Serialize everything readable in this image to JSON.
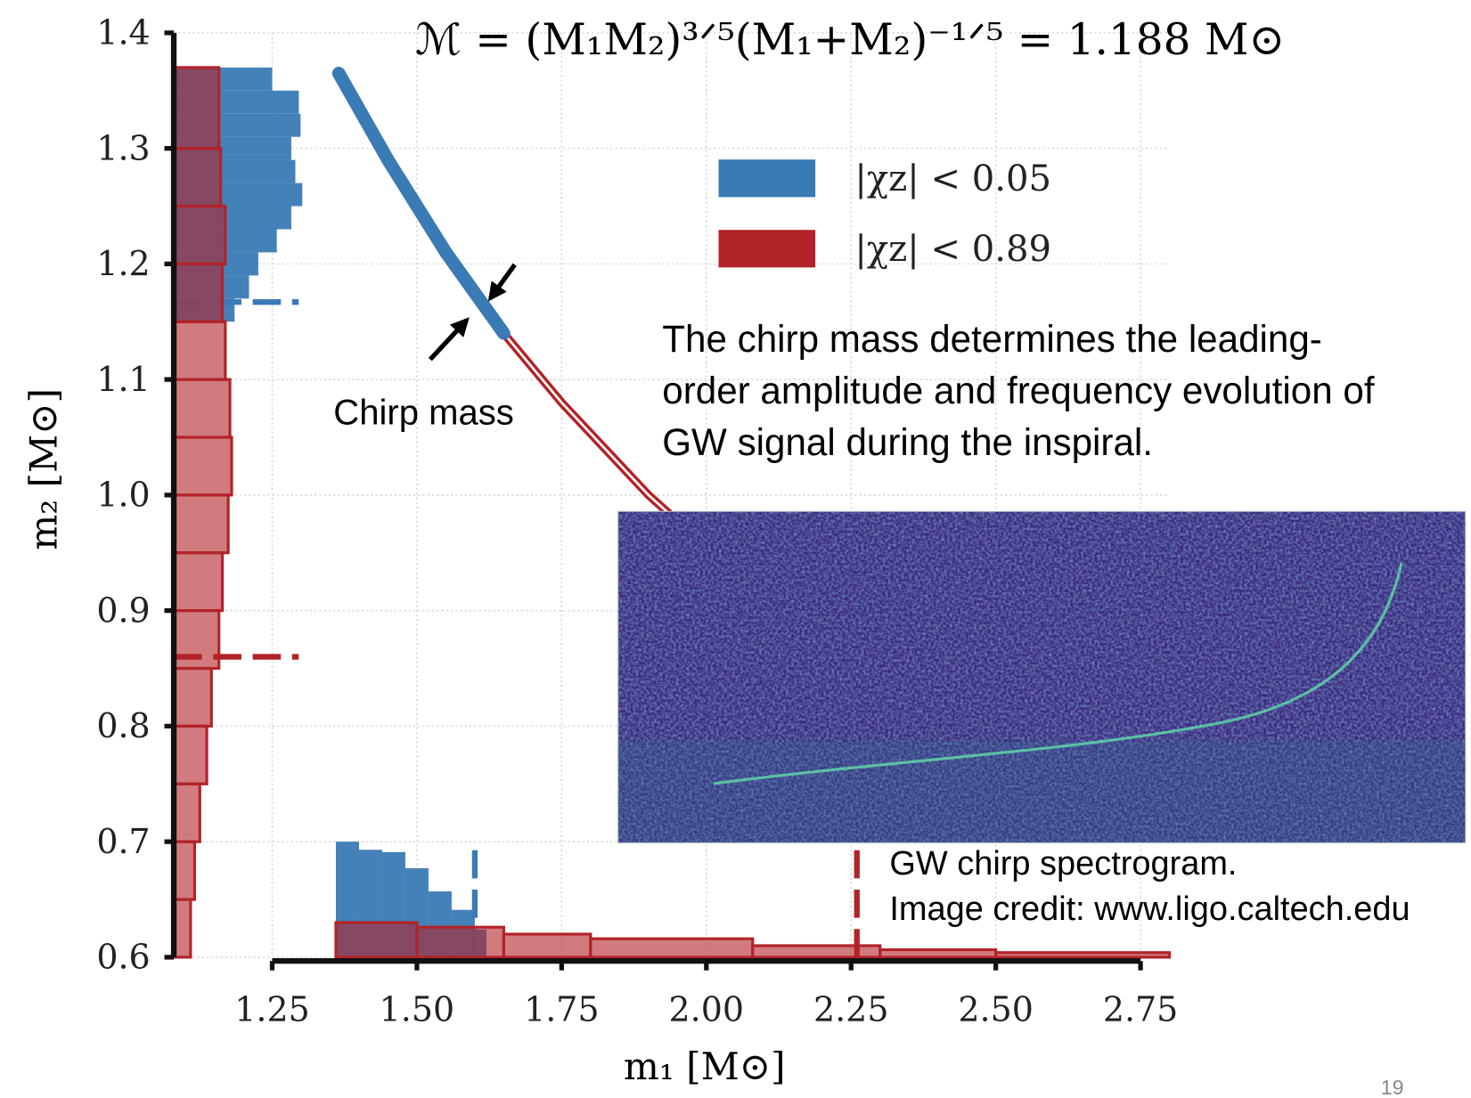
{
  "chart_data": {
    "type": "scatter",
    "title": "ℳ = (M₁M₂)³ᐟ⁵(M₁+M₂)⁻¹ᐟ⁵ = 1.188 M⊙",
    "x_label": "m₁ [M⊙]",
    "y_label": "m₂ [M⊙]",
    "xlim": [
      1.08,
      2.8
    ],
    "ylim": [
      0.6,
      1.4
    ],
    "xticks": [
      1.25,
      {
        "value": 1.5,
        "label": "1.50"
      },
      1.75,
      {
        "value": 2.0,
        "label": "2.00"
      },
      2.25,
      {
        "value": 2.5,
        "label": "2.50"
      },
      2.75
    ],
    "yticks": [
      0.6,
      0.7,
      0.8,
      0.9,
      {
        "value": 1.0,
        "label": "1.0"
      },
      1.1,
      1.2,
      1.3,
      1.4
    ],
    "grid": true,
    "legend": "upper right",
    "series": [
      {
        "name": "|χz| < 0.05",
        "color": "#3a7ab5",
        "x": [
          1.365,
          1.45,
          1.55,
          1.65
        ],
        "y": [
          1.365,
          1.29,
          1.21,
          1.14
        ],
        "hist_m2": {
          "bins": [
            1.15,
            1.17,
            1.19,
            1.21,
            1.23,
            1.25,
            1.27,
            1.29,
            1.31,
            1.33,
            1.35,
            1.37
          ],
          "values": [
            0.105,
            0.13,
            0.146,
            0.178,
            0.203,
            0.222,
            0.21,
            0.203,
            0.219,
            0.216,
            0.17
          ]
        },
        "hist_m1": {
          "bins": [
            1.36,
            1.4,
            1.44,
            1.48,
            1.52,
            1.56,
            1.6,
            1.62
          ],
          "values": [
            0.1,
            0.093,
            0.091,
            0.077,
            0.057,
            0.041,
            0.024
          ]
        },
        "median_m1": 1.6,
        "median_m2": 1.167
      },
      {
        "name": "|χz| < 0.89",
        "color": "#b22328",
        "x": [
          1.65,
          1.75,
          1.9,
          2.0,
          2.1,
          2.26
        ],
        "y": [
          1.14,
          1.08,
          1.0,
          0.955,
          0.91,
          0.85
        ],
        "hist_m2": {
          "bins": [
            0.6,
            0.65,
            0.7,
            0.75,
            0.8,
            0.85,
            0.9,
            0.95,
            1.0,
            1.05,
            1.1,
            1.15,
            1.2,
            1.25,
            1.3,
            1.37
          ],
          "values": [
            0.029,
            0.036,
            0.045,
            0.057,
            0.065,
            0.078,
            0.084,
            0.094,
            0.1,
            0.097,
            0.089,
            0.084,
            0.089,
            0.081,
            0.078
          ]
        },
        "hist_m1": {
          "bins": [
            1.36,
            1.5,
            1.65,
            1.8,
            2.08,
            2.3,
            2.5,
            2.8
          ],
          "values": [
            0.03,
            0.026,
            0.02,
            0.016,
            0.01,
            0.0065,
            0.004
          ]
        },
        "median_m1": 2.26,
        "median_m2": 0.86
      }
    ],
    "annotations": {
      "chirp_label": "Chirp mass",
      "description": [
        "The chirp  mass determines the leading-",
        "order amplitude and frequency evolution of",
        "GW signal during the inspiral."
      ],
      "caption": [
        "GW chirp spectrogram.",
        "Image credit: www.ligo.caltech.edu"
      ],
      "page_number": "19"
    }
  }
}
